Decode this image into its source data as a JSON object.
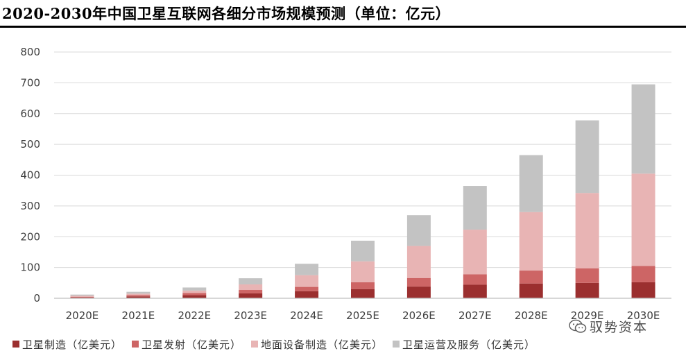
{
  "title": "2020-2030年中国卫星互联网各细分市场规模预测（单位：亿元）",
  "watermark": {
    "icon": "wechat-icon",
    "text": "驭势资本"
  },
  "colors": {
    "manufacturing": "#9b2f2f",
    "launch": "#cd6565",
    "ground": "#e8b4b4",
    "operation": "#c3c3c3",
    "grid": "#d9d9d9",
    "axis": "#bfbfbf"
  },
  "chart_data": {
    "type": "bar",
    "stacked": true,
    "categories": [
      "2020E",
      "2021E",
      "2022E",
      "2023E",
      "2024E",
      "2025E",
      "2026E",
      "2027E",
      "2028E",
      "2029E",
      "2030E"
    ],
    "yticks": [
      0,
      100,
      200,
      300,
      400,
      500,
      600,
      700,
      800
    ],
    "ylim": [
      0,
      800
    ],
    "grid": true,
    "legend_position": "bottom",
    "series": [
      {
        "name": "卫星制造（亿美元）",
        "color_key": "manufacturing",
        "values": [
          3,
          6,
          10,
          16,
          23,
          30,
          38,
          44,
          48,
          50,
          52
        ]
      },
      {
        "name": "卫星发射（亿美元）",
        "color_key": "launch",
        "values": [
          2,
          4,
          7,
          11,
          14,
          22,
          28,
          34,
          42,
          47,
          53
        ]
      },
      {
        "name": "地面设备制造（亿美元）",
        "color_key": "ground",
        "values": [
          3,
          5,
          8,
          18,
          38,
          68,
          104,
          145,
          190,
          245,
          300
        ]
      },
      {
        "name": "卫星运营及服务（亿美元）",
        "color_key": "operation",
        "values": [
          4,
          6,
          10,
          20,
          37,
          67,
          100,
          142,
          185,
          236,
          290
        ]
      }
    ]
  }
}
